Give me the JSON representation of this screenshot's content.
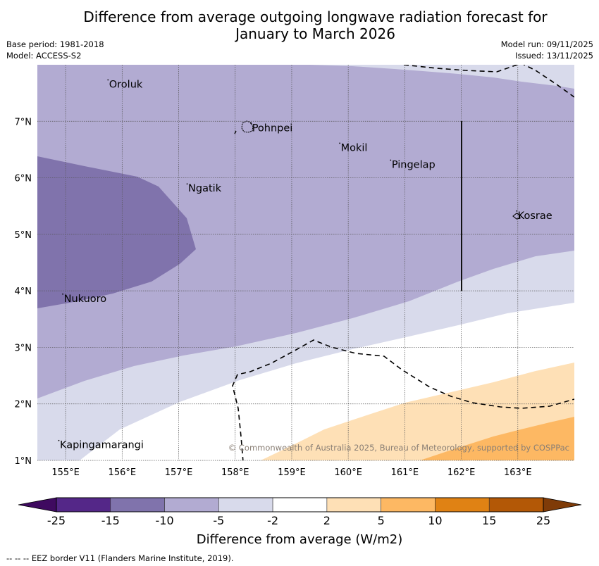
{
  "header": {
    "title_line1": "Difference from average outgoing longwave radiation forecast for",
    "title_line2": "January to March 2026",
    "base_period": "Base period: 1981-2018",
    "model": "Model: ACCESS-S2",
    "model_run": "Model run: 09/11/2025",
    "issued": "Issued: 13/11/2025"
  },
  "map": {
    "extent": {
      "lon_min": 154.5,
      "lon_max": 164.0,
      "lat_min": 1.0,
      "lat_max": 8.0
    },
    "lon_ticks": [
      {
        "value": 155,
        "label": "155°E"
      },
      {
        "value": 156,
        "label": "156°E"
      },
      {
        "value": 157,
        "label": "157°E"
      },
      {
        "value": 158,
        "label": "158°E"
      },
      {
        "value": 159,
        "label": "159°E"
      },
      {
        "value": 160,
        "label": "160°E"
      },
      {
        "value": 161,
        "label": "161°E"
      },
      {
        "value": 162,
        "label": "162°E"
      },
      {
        "value": 163,
        "label": "163°E"
      }
    ],
    "lat_ticks": [
      {
        "value": 1,
        "label": "1°N"
      },
      {
        "value": 2,
        "label": "2°N"
      },
      {
        "value": 3,
        "label": "3°N"
      },
      {
        "value": 4,
        "label": "4°N"
      },
      {
        "value": 5,
        "label": "5°N"
      },
      {
        "value": 6,
        "label": "6°N"
      },
      {
        "value": 7,
        "label": "7°N"
      }
    ],
    "places": [
      {
        "name": "Oroluk",
        "lon": 155.75,
        "lat": 7.62
      },
      {
        "name": "Pohnpei",
        "lon": 158.28,
        "lat": 6.85
      },
      {
        "name": "Mokil",
        "lon": 159.85,
        "lat": 6.5
      },
      {
        "name": "Pingelap",
        "lon": 160.75,
        "lat": 6.2
      },
      {
        "name": "Ngatik",
        "lon": 157.15,
        "lat": 5.78
      },
      {
        "name": "Kosrae",
        "lon": 162.98,
        "lat": 5.3
      },
      {
        "name": "Nukuoro",
        "lon": 154.95,
        "lat": 3.83
      },
      {
        "name": "Kapingamarangi",
        "lon": 154.88,
        "lat": 1.24
      }
    ],
    "credit": "© Commonwealth of Australia 2025, Bureau of Meteorology, supported by COSPPac"
  },
  "colorbar": {
    "title": "Difference from average (W/m2)",
    "under_color": "#3f0a60",
    "over_color": "#7f3b08",
    "bins": [
      {
        "from": -25,
        "to": -15,
        "color": "#542788"
      },
      {
        "from": -15,
        "to": -10,
        "color": "#8073ac"
      },
      {
        "from": -10,
        "to": -5,
        "color": "#b2abd2"
      },
      {
        "from": -5,
        "to": -2,
        "color": "#d8daeb"
      },
      {
        "from": -2,
        "to": 2,
        "color": "#ffffff"
      },
      {
        "from": 2,
        "to": 5,
        "color": "#fee0b6"
      },
      {
        "from": 5,
        "to": 10,
        "color": "#fdb863"
      },
      {
        "from": 10,
        "to": 15,
        "color": "#e08214"
      },
      {
        "from": 15,
        "to": 25,
        "color": "#b35806"
      }
    ],
    "tick_labels": [
      "-25",
      "-15",
      "-10",
      "-5",
      "-2",
      "2",
      "5",
      "10",
      "15",
      "25"
    ]
  },
  "footnote": "--  --  -- EEZ border V11 (Flanders Marine Institute, 2019)."
}
